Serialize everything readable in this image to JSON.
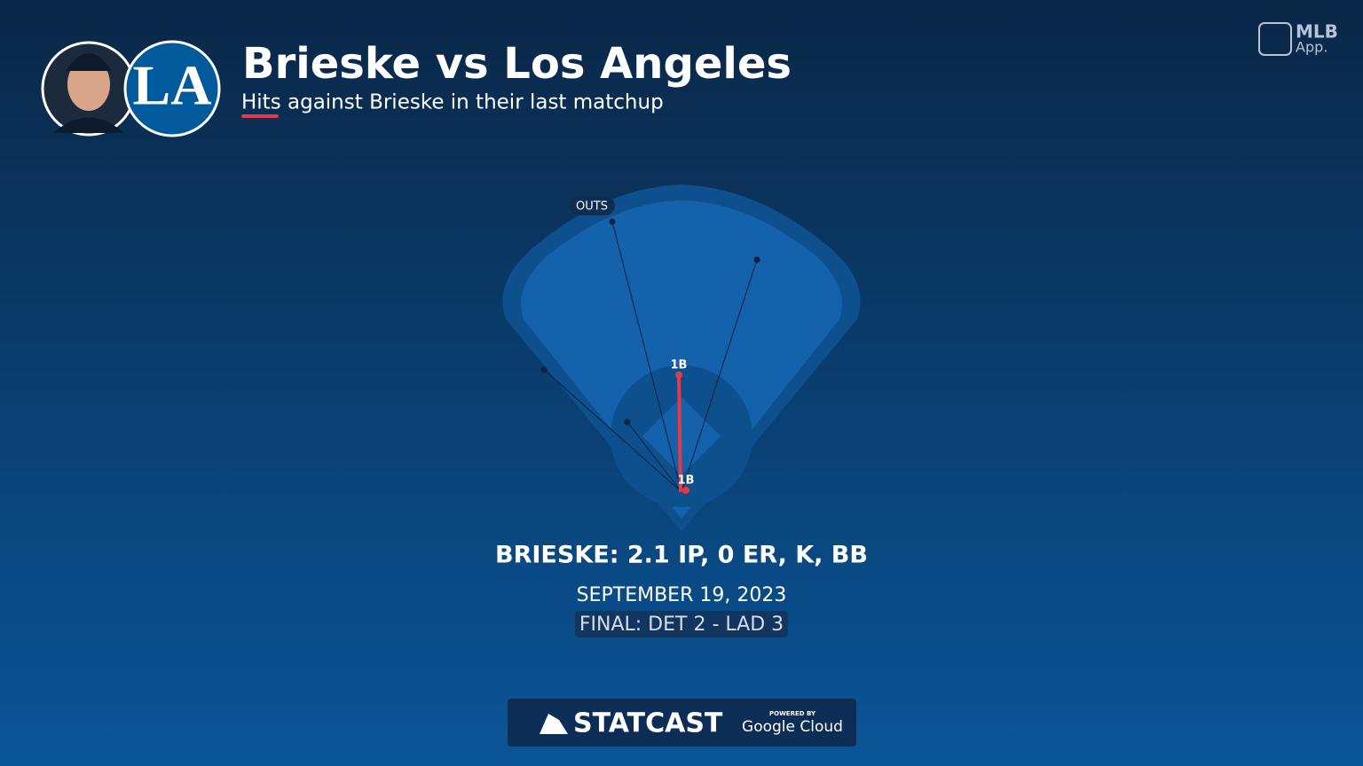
{
  "header": {
    "title": "Brieske vs Los Angeles",
    "subtitle": "Hits against Brieske in their last matchup",
    "team_logo": "LA"
  },
  "brand": {
    "name": "MLB",
    "suffix": "App."
  },
  "field": {
    "outs_label": "OUTS",
    "hits": [
      "1B",
      "1B"
    ]
  },
  "summary": {
    "line": "BRIESKE: 2.1 IP, 0 ER, K, BB",
    "date": "SEPTEMBER 19, 2023",
    "final": "FINAL: DET 2 - LAD 3"
  },
  "footer": {
    "logo": "STATCAST",
    "powered": "POWERED BY",
    "partner": "Google Cloud"
  }
}
